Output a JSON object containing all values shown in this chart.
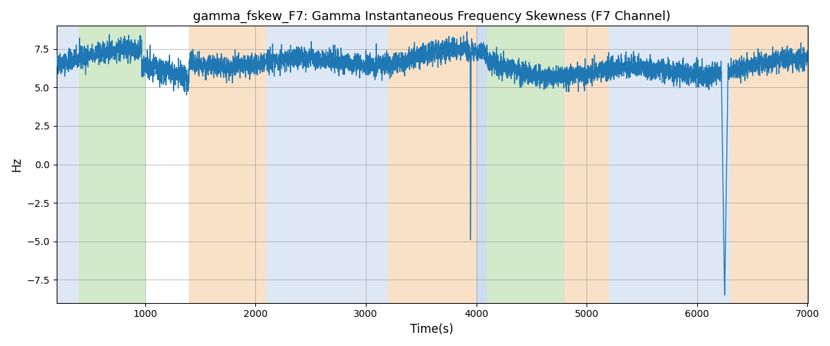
{
  "title": "gamma_fskew_F7: Gamma Instantaneous Frequency Skewness (F7 Channel)",
  "xlabel": "Time(s)",
  "ylabel": "Hz",
  "xlim": [
    200,
    7000
  ],
  "ylim": [
    -9,
    9
  ],
  "yticks": [
    -7.5,
    -5.0,
    -2.5,
    0.0,
    2.5,
    5.0,
    7.5
  ],
  "xticks": [
    1000,
    2000,
    3000,
    4000,
    5000,
    6000,
    7000
  ],
  "line_color": "#1f77b4",
  "line_width": 1.0,
  "bg_color": "#ffffff",
  "seed": 42,
  "num_points": 6800,
  "base_mean": 6.8,
  "noise_std": 0.35,
  "spike1_x": 3950,
  "spike1_y": -4.9,
  "spike2_x": 6250,
  "spike2_y": -8.5,
  "segments": [
    {
      "start": 200,
      "end": 400,
      "color": "#aec6e8",
      "alpha": 0.4
    },
    {
      "start": 400,
      "end": 1000,
      "color": "#90c97c",
      "alpha": 0.4
    },
    {
      "start": 1400,
      "end": 2100,
      "color": "#f5c590",
      "alpha": 0.5
    },
    {
      "start": 2100,
      "end": 3200,
      "color": "#aec6e8",
      "alpha": 0.4
    },
    {
      "start": 3200,
      "end": 4000,
      "color": "#f5c590",
      "alpha": 0.5
    },
    {
      "start": 4000,
      "end": 4100,
      "color": "#aec6e8",
      "alpha": 0.6
    },
    {
      "start": 4100,
      "end": 4800,
      "color": "#90c97c",
      "alpha": 0.4
    },
    {
      "start": 4800,
      "end": 5200,
      "color": "#f5c590",
      "alpha": 0.5
    },
    {
      "start": 5200,
      "end": 5700,
      "color": "#aec6e8",
      "alpha": 0.4
    },
    {
      "start": 5700,
      "end": 6300,
      "color": "#aec6e8",
      "alpha": 0.4
    },
    {
      "start": 6300,
      "end": 7000,
      "color": "#f5c590",
      "alpha": 0.5
    }
  ]
}
